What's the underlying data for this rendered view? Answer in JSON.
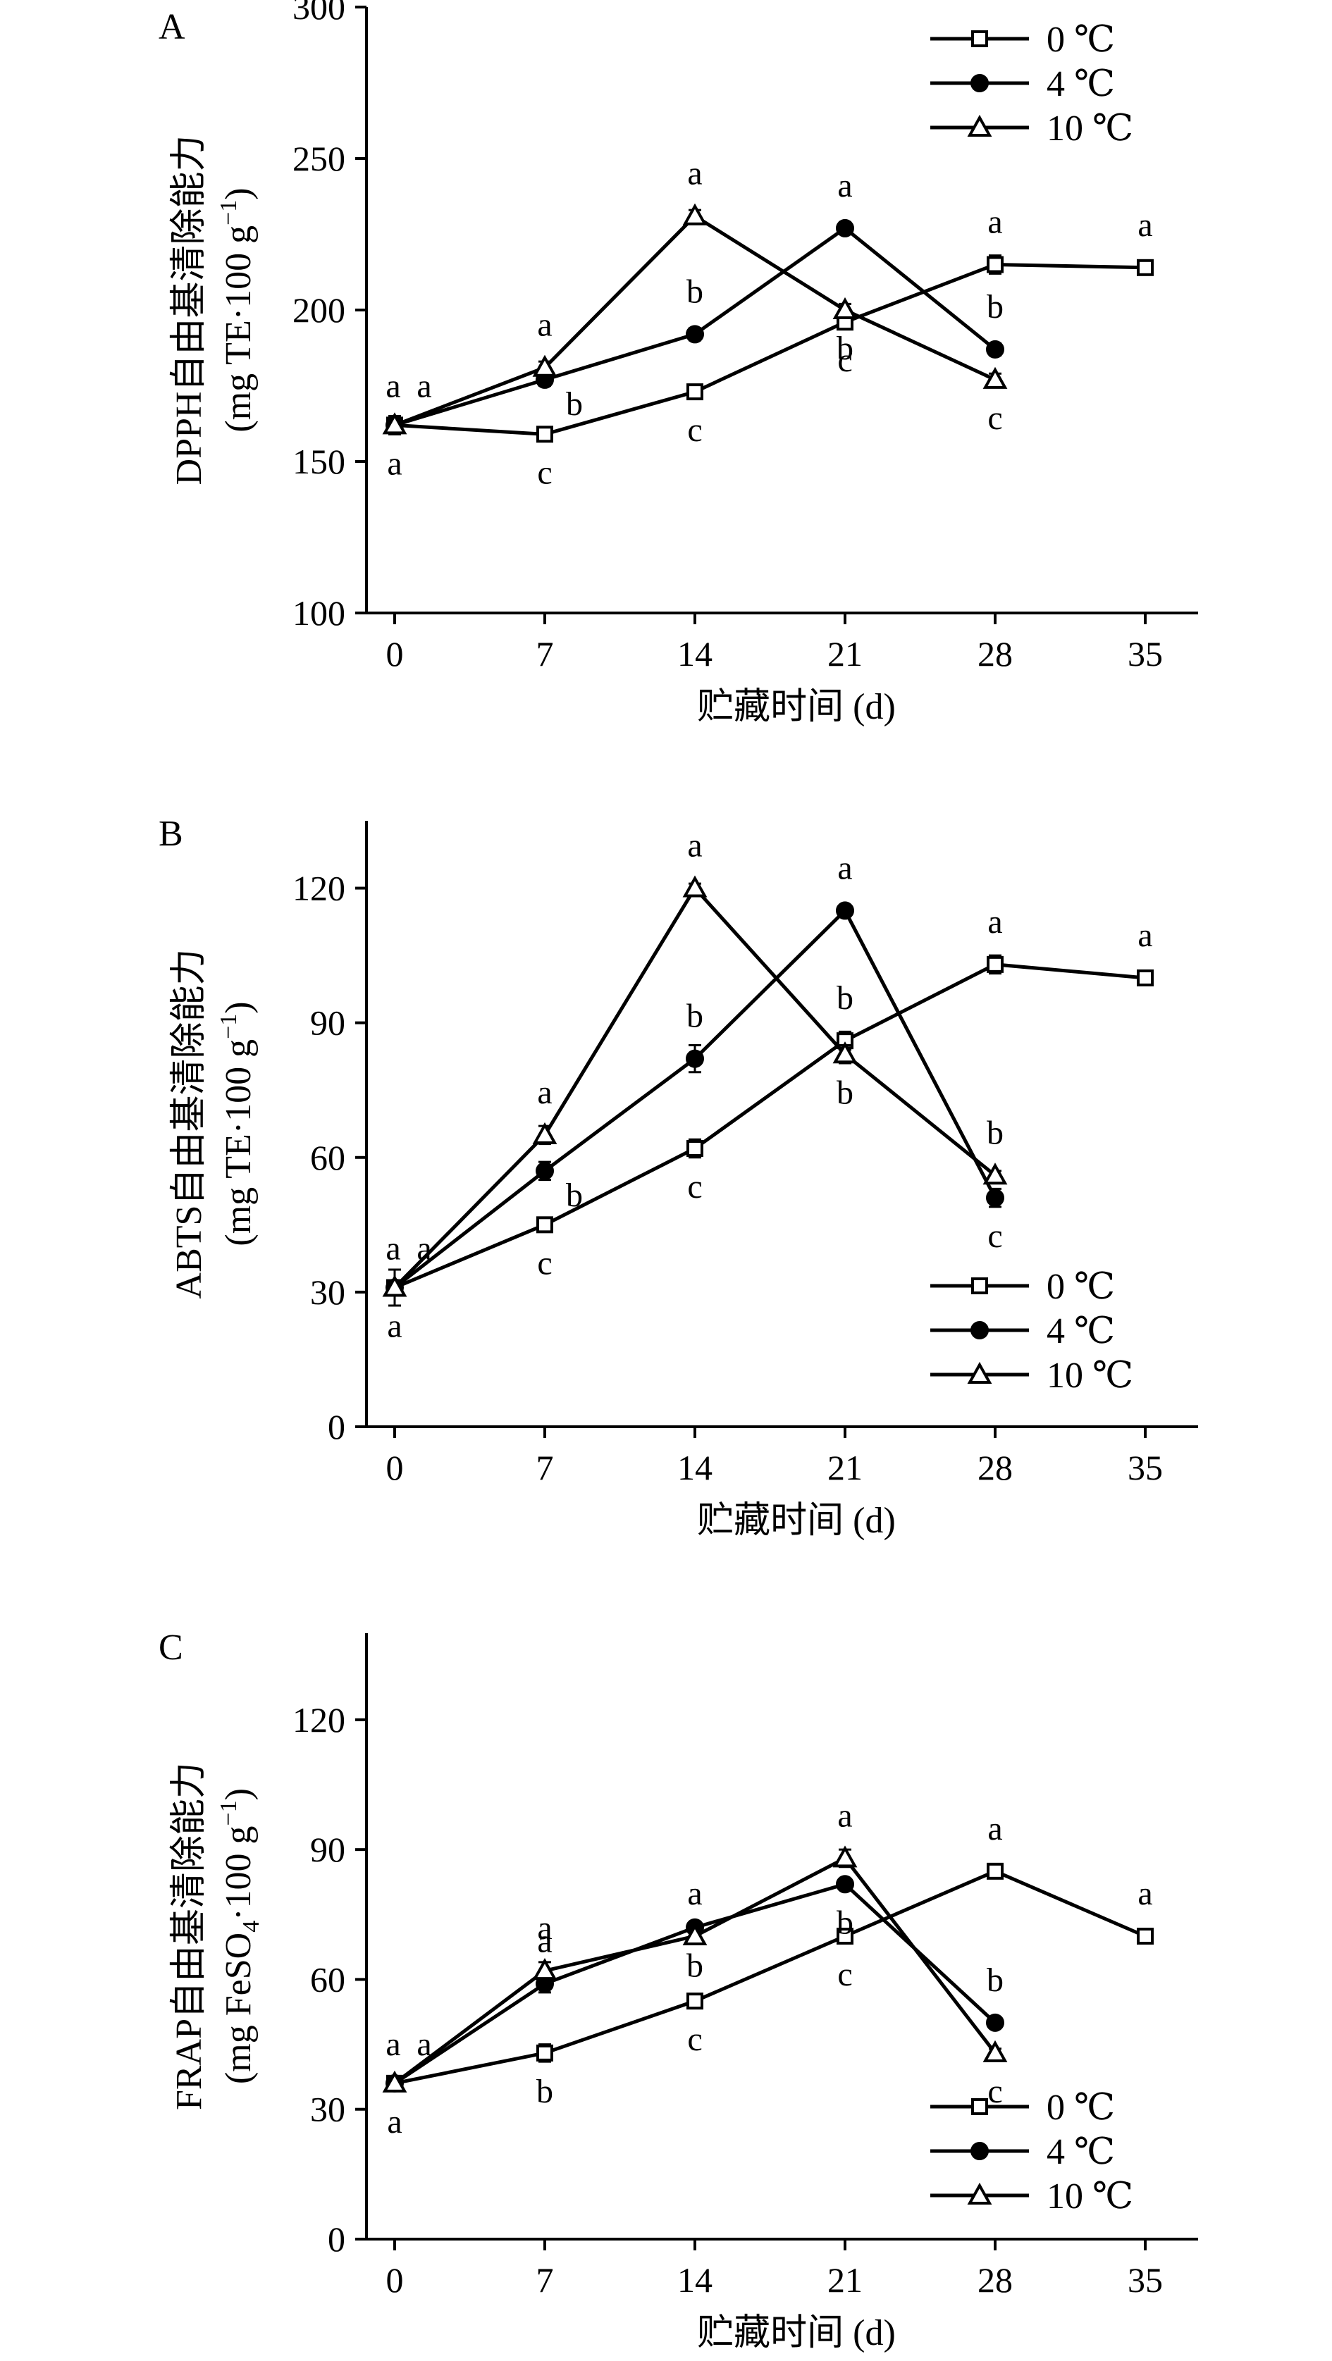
{
  "chart_data": [
    {
      "type": "line",
      "panel": "A",
      "ylabel": "DPPH自由基清除能力",
      "yunit_pre": "(mg TE·100 g",
      "yunit_sup": "−1",
      "yunit_post": ")",
      "xlabel": "贮藏时间 (d)",
      "x": [
        0,
        7,
        14,
        21,
        28,
        35
      ],
      "xticks": [
        "0",
        "7",
        "14",
        "21",
        "28",
        "35"
      ],
      "ylim": [
        100,
        300
      ],
      "yticks": [
        "100",
        "150",
        "200",
        "250",
        "300"
      ],
      "ytick_values": [
        100,
        150,
        200,
        250,
        300
      ],
      "legend_position": "top-right",
      "series": [
        {
          "name": "0 ℃",
          "marker": "square-open",
          "x": [
            0,
            7,
            14,
            21,
            28,
            35
          ],
          "values": [
            162,
            159,
            173,
            196,
            215,
            214
          ],
          "errors": [
            3,
            2,
            2,
            2,
            3,
            2
          ],
          "letters": [
            "a",
            "c",
            "c",
            "c",
            "a",
            "a"
          ],
          "letter_pos": [
            "below",
            "below",
            "below",
            "below",
            "above",
            "above"
          ]
        },
        {
          "name": "4 ℃",
          "marker": "circle-filled",
          "x": [
            0,
            7,
            14,
            21,
            28
          ],
          "values": [
            162,
            177,
            192,
            227,
            187
          ],
          "errors": [
            3,
            2,
            2,
            2,
            2
          ],
          "letters": [
            "a",
            "b",
            "b",
            "a",
            "b"
          ],
          "letter_pos": [
            "above-left",
            "below-right",
            "above",
            "above",
            "above"
          ]
        },
        {
          "name": "10 ℃",
          "marker": "triangle-open",
          "x": [
            0,
            7,
            14,
            21,
            28
          ],
          "values": [
            162,
            181,
            231,
            200,
            177
          ],
          "errors": [
            3,
            2,
            2,
            2,
            2
          ],
          "letters": [
            "a",
            "a",
            "a",
            "b",
            "c"
          ],
          "letter_pos": [
            "above-right",
            "above",
            "above",
            "below",
            "below"
          ]
        }
      ]
    },
    {
      "type": "line",
      "panel": "B",
      "ylabel": "ABTS自由基清除能力",
      "yunit_pre": "(mg TE·100 g",
      "yunit_sup": "−1",
      "yunit_post": ")",
      "xlabel": "贮藏时间 (d)",
      "x": [
        0,
        7,
        14,
        21,
        28,
        35
      ],
      "xticks": [
        "0",
        "7",
        "14",
        "21",
        "28",
        "35"
      ],
      "ylim": [
        0,
        135
      ],
      "yticks": [
        "0",
        "30",
        "60",
        "90",
        "120"
      ],
      "ytick_values": [
        0,
        30,
        60,
        90,
        120
      ],
      "legend_position": "bottom-right",
      "series": [
        {
          "name": "0 ℃",
          "marker": "square-open",
          "x": [
            0,
            7,
            14,
            21,
            28,
            35
          ],
          "values": [
            31,
            45,
            62,
            86,
            103,
            100
          ],
          "errors": [
            4,
            1,
            2,
            2,
            2,
            1
          ],
          "letters": [
            "a",
            "c",
            "c",
            "b",
            "a",
            "a"
          ],
          "letter_pos": [
            "below",
            "below",
            "below",
            "above",
            "above",
            "above"
          ]
        },
        {
          "name": "4 ℃",
          "marker": "circle-filled",
          "x": [
            0,
            7,
            14,
            21,
            28
          ],
          "values": [
            31,
            57,
            82,
            115,
            51
          ],
          "errors": [
            4,
            2,
            3,
            1,
            2
          ],
          "letters": [
            "a",
            "b",
            "b",
            "a",
            "c"
          ],
          "letter_pos": [
            "above-left",
            "below-right",
            "above",
            "above",
            "below"
          ]
        },
        {
          "name": "10 ℃",
          "marker": "triangle-open",
          "x": [
            0,
            7,
            14,
            21,
            28
          ],
          "values": [
            31,
            65,
            120,
            83,
            56
          ],
          "errors": [
            4,
            2,
            1,
            2,
            1
          ],
          "letters": [
            "a",
            "a",
            "a",
            "b",
            "b"
          ],
          "letter_pos": [
            "above-right",
            "above",
            "above",
            "below",
            "above"
          ]
        }
      ]
    },
    {
      "type": "line",
      "panel": "C",
      "ylabel": "FRAP自由基清除能力",
      "yunit_pre": "(mg FeSO",
      "yunit_sub": "4",
      "yunit_mid": "·100 g",
      "yunit_sup": "−1",
      "yunit_post": ")",
      "xlabel": "贮藏时间 (d)",
      "x": [
        0,
        7,
        14,
        21,
        28,
        35
      ],
      "xticks": [
        "0",
        "7",
        "14",
        "21",
        "28",
        "35"
      ],
      "ylim": [
        0,
        140
      ],
      "yticks": [
        "0",
        "30",
        "60",
        "90",
        "120"
      ],
      "ytick_values": [
        0,
        30,
        60,
        90,
        120
      ],
      "legend_position": "bottom-right",
      "series": [
        {
          "name": "0 ℃",
          "marker": "square-open",
          "x": [
            0,
            7,
            14,
            21,
            28,
            35
          ],
          "values": [
            36,
            43,
            55,
            70,
            85,
            70
          ],
          "errors": [
            1,
            2,
            1,
            1,
            1,
            1
          ],
          "letters": [
            "a",
            "b",
            "c",
            "c",
            "a",
            "a"
          ],
          "letter_pos": [
            "below",
            "below",
            "below",
            "below",
            "above",
            "above"
          ]
        },
        {
          "name": "4 ℃",
          "marker": "circle-filled",
          "x": [
            0,
            7,
            14,
            21,
            28
          ],
          "values": [
            36,
            59,
            72,
            82,
            50
          ],
          "errors": [
            1,
            2,
            1,
            1,
            1
          ],
          "letters": [
            "a",
            "a",
            "b",
            "b",
            "b"
          ],
          "letter_pos": [
            "above-left",
            "above",
            "below",
            "below",
            "above"
          ]
        },
        {
          "name": "10 ℃",
          "marker": "triangle-open",
          "x": [
            0,
            7,
            14,
            21,
            28
          ],
          "values": [
            36,
            62,
            70,
            88,
            43
          ],
          "errors": [
            1,
            2,
            1,
            2,
            1
          ],
          "letters": [
            "a",
            "a",
            "a",
            "a",
            "c"
          ],
          "letter_pos": [
            "above-right",
            "above",
            "above",
            "above",
            "below"
          ]
        }
      ]
    }
  ]
}
